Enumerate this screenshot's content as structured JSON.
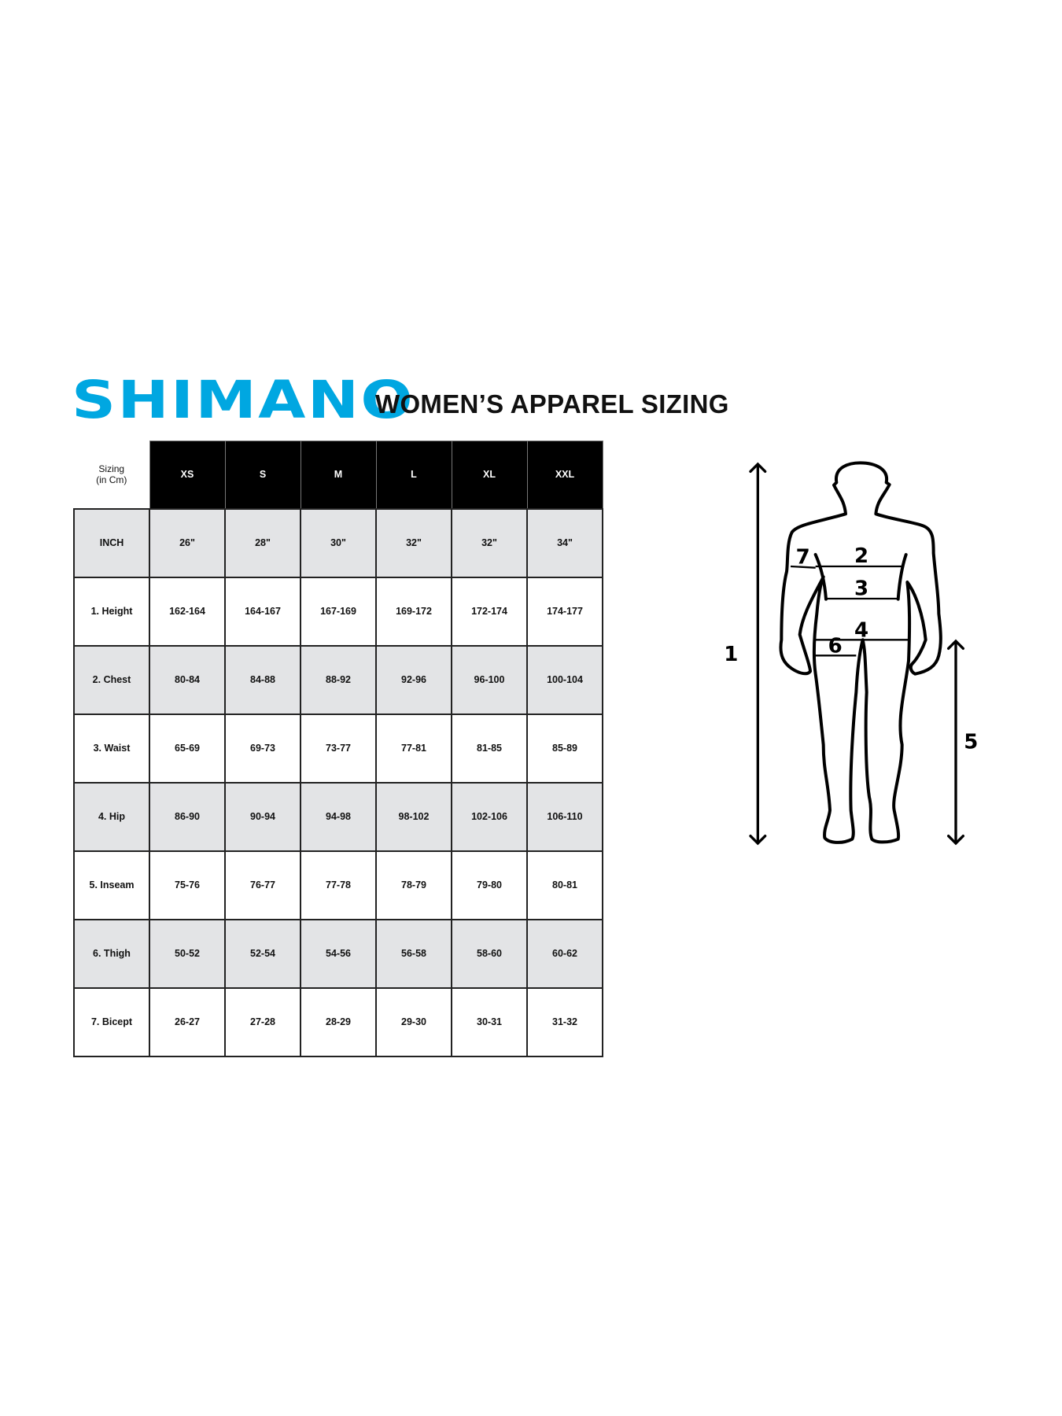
{
  "brand": {
    "logo_text": "SHIMANO",
    "color": "#00a7e1"
  },
  "title": "WOMEN’S APPAREL SIZING",
  "table": {
    "corner_line1": "Sizing",
    "corner_line2": "(in Cm)",
    "sizes": [
      "XS",
      "S",
      "M",
      "L",
      "XL",
      "XXL"
    ],
    "rows": [
      {
        "label": "INCH",
        "values": [
          "26\"",
          "28\"",
          "30\"",
          "32\"",
          "32\"",
          "34\""
        ]
      },
      {
        "label": "1. Height",
        "values": [
          "162-164",
          "164-167",
          "167-169",
          "169-172",
          "172-174",
          "174-177"
        ]
      },
      {
        "label": "2. Chest",
        "values": [
          "80-84",
          "84-88",
          "88-92",
          "92-96",
          "96-100",
          "100-104"
        ]
      },
      {
        "label": "3. Waist",
        "values": [
          "65-69",
          "69-73",
          "73-77",
          "77-81",
          "81-85",
          "85-89"
        ]
      },
      {
        "label": "4. Hip",
        "values": [
          "86-90",
          "90-94",
          "94-98",
          "98-102",
          "102-106",
          "106-110"
        ]
      },
      {
        "label": "5. Inseam",
        "values": [
          "75-76",
          "76-77",
          "77-78",
          "78-79",
          "79-80",
          "80-81"
        ]
      },
      {
        "label": "6. Thigh",
        "values": [
          "50-52",
          "52-54",
          "54-56",
          "56-58",
          "58-60",
          "60-62"
        ]
      },
      {
        "label": "7. Bicept",
        "values": [
          "26-27",
          "27-28",
          "28-29",
          "29-30",
          "30-31",
          "31-32"
        ]
      }
    ]
  },
  "figure": {
    "labels": {
      "height": "1",
      "chest": "2",
      "waist": "3",
      "hip": "4",
      "inseam": "5",
      "thigh": "6",
      "bicep": "7"
    }
  }
}
